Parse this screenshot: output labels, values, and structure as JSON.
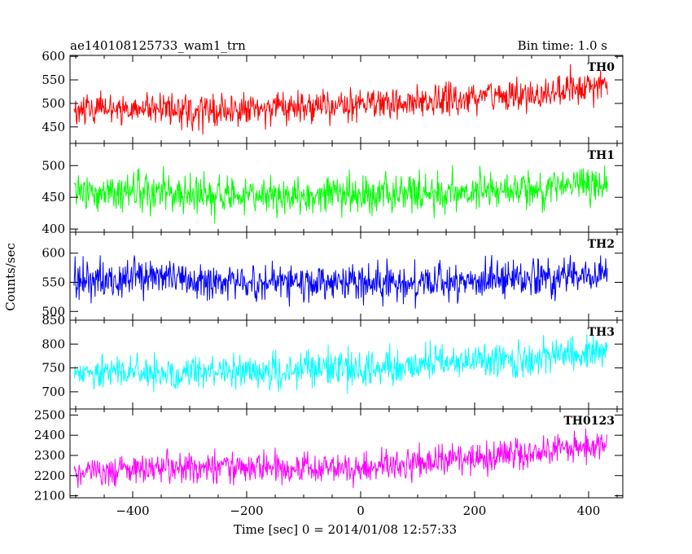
{
  "header": {
    "obs_id": "ae140108125733_wam1_trn",
    "bin_time": "Bin time: 1.0 s"
  },
  "axes": {
    "ylabel": "Counts/sec",
    "xlabel": "Time [sec] 0 = 2014/01/08 12:57:33"
  },
  "chart_data": {
    "type": "line",
    "xlabel": "Time [sec] 0 = 2014/01/08 12:57:33",
    "ylabel": "Counts/sec",
    "xlim": [
      -510,
      460
    ],
    "xticks": [
      -400,
      -200,
      0,
      200,
      400
    ],
    "x_start": -503,
    "x_end": 433,
    "bin": 1.0,
    "panels": [
      {
        "name": "TH0",
        "color": "#ff0000",
        "ylim": [
          415,
          602
        ],
        "yticks": [
          450,
          500,
          550,
          600
        ],
        "baseline": [
          [
            -503,
            485
          ],
          [
            -400,
            490
          ],
          [
            -300,
            482
          ],
          [
            -200,
            488
          ],
          [
            -100,
            492
          ],
          [
            0,
            498
          ],
          [
            100,
            506
          ],
          [
            200,
            512
          ],
          [
            300,
            520
          ],
          [
            433,
            540
          ]
        ],
        "noise": 28
      },
      {
        "name": "TH1",
        "color": "#00ff00",
        "ylim": [
          395,
          535
        ],
        "yticks": [
          400,
          450,
          500
        ],
        "baseline": [
          [
            -503,
            458
          ],
          [
            -400,
            456
          ],
          [
            -300,
            454
          ],
          [
            -200,
            453
          ],
          [
            -100,
            452
          ],
          [
            0,
            455
          ],
          [
            100,
            456
          ],
          [
            200,
            460
          ],
          [
            300,
            462
          ],
          [
            433,
            468
          ]
        ],
        "noise": 24
      },
      {
        "name": "TH2",
        "color": "#0000ff",
        "ylim": [
          485,
          636
        ],
        "yticks": [
          500,
          550,
          600
        ],
        "baseline": [
          [
            -503,
            552
          ],
          [
            -400,
            555
          ],
          [
            -300,
            552
          ],
          [
            -200,
            550
          ],
          [
            -100,
            549
          ],
          [
            0,
            548
          ],
          [
            100,
            550
          ],
          [
            200,
            554
          ],
          [
            300,
            557
          ],
          [
            433,
            565
          ]
        ],
        "noise": 26
      },
      {
        "name": "TH3",
        "color": "#00ffff",
        "ylim": [
          664,
          850
        ],
        "yticks": [
          700,
          750,
          800,
          850
        ],
        "baseline": [
          [
            -503,
            735
          ],
          [
            -400,
            740
          ],
          [
            -300,
            738
          ],
          [
            -200,
            740
          ],
          [
            -100,
            745
          ],
          [
            0,
            748
          ],
          [
            100,
            755
          ],
          [
            200,
            762
          ],
          [
            300,
            772
          ],
          [
            433,
            785
          ]
        ],
        "noise": 30
      },
      {
        "name": "TH0123",
        "color": "#ff00ff",
        "ylim": [
          2090,
          2530
        ],
        "yticks": [
          2100,
          2200,
          2300,
          2400,
          2500
        ],
        "baseline": [
          [
            -503,
            2225
          ],
          [
            -400,
            2230
          ],
          [
            -300,
            2228
          ],
          [
            -200,
            2232
          ],
          [
            -100,
            2238
          ],
          [
            0,
            2245
          ],
          [
            100,
            2262
          ],
          [
            200,
            2285
          ],
          [
            300,
            2310
          ],
          [
            433,
            2370
          ]
        ],
        "noise": 60
      }
    ]
  }
}
